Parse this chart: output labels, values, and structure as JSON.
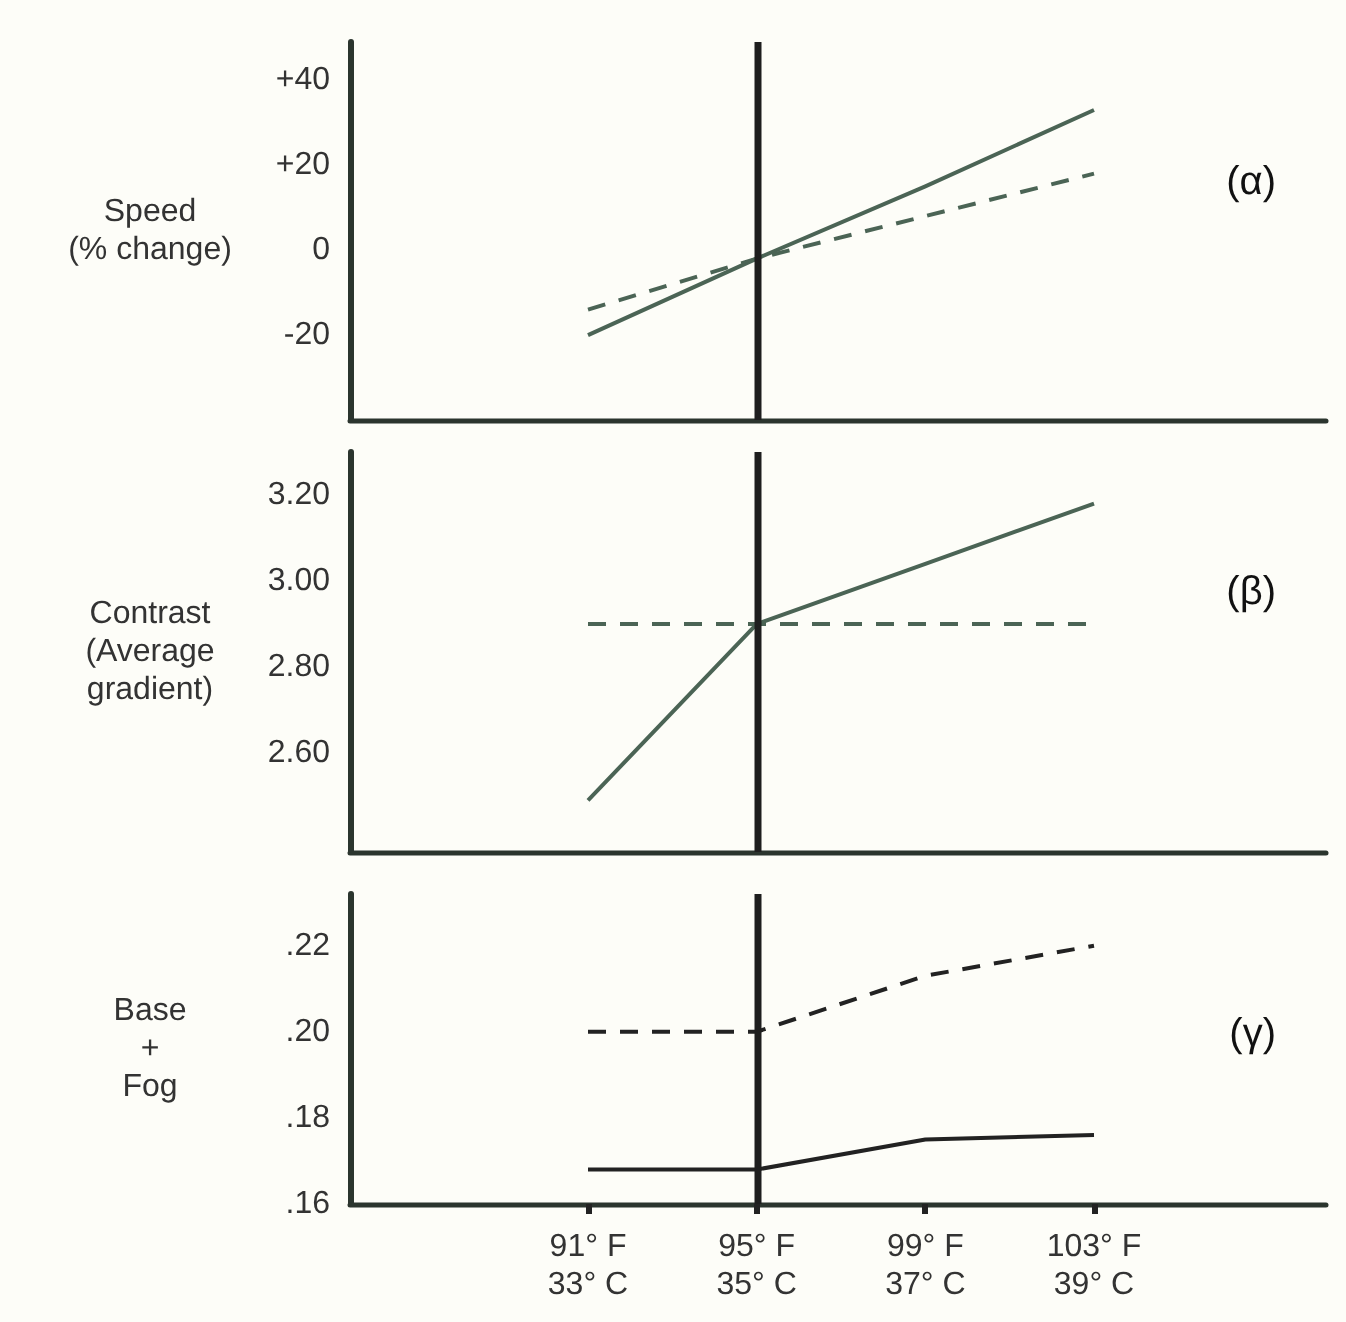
{
  "chart_data": [
    {
      "type": "line",
      "ylabel": "Speed\n(% change)",
      "categories": [
        null,
        null,
        null,
        null
      ],
      "ylim": [
        -40,
        49
      ],
      "yticks": [
        {
          "value": 40,
          "label": "+40"
        },
        {
          "value": 20,
          "label": "+20"
        },
        0,
        -20
      ],
      "tick_labels": "y",
      "marker": "none",
      "series": [
        {
          "color": "#4b6455",
          "line_style": "solid",
          "values": [
            -20,
            -2,
            15,
            33
          ]
        },
        {
          "color": "#4b6455",
          "line_style": "dashed",
          "values": [
            -14,
            -2,
            8,
            18
          ]
        }
      ],
      "annotations": [
        "(α)"
      ]
    },
    {
      "type": "line",
      "ylabel": "Contrast\n(Average\ngradient)",
      "categories": [
        null,
        null,
        null,
        null
      ],
      "ylim": [
        2.37,
        3.3
      ],
      "yticks": [
        {
          "value": 3.2,
          "label": "3.20"
        },
        {
          "value": 3,
          "label": "3.00"
        },
        {
          "value": 2.8,
          "label": "2.80"
        },
        {
          "value": 2.6,
          "label": "2.60"
        }
      ],
      "tick_labels": "y",
      "marker": "none",
      "series": [
        {
          "color": "#4b6455",
          "line_style": "solid",
          "values": [
            2.49,
            2.9,
            3.04,
            3.18
          ]
        },
        {
          "color": "#4b6455",
          "line_style": "dashed",
          "values": [
            2.9,
            2.9,
            2.9,
            2.9
          ]
        }
      ],
      "annotations": [
        "(β)"
      ]
    },
    {
      "type": "line",
      "ylabel": "Base\n+\nFog",
      "categories": [
        "91° F\n33° C",
        "95° F\n35° C",
        "99° F\n37° C",
        "103° F\n39° C"
      ],
      "ylim": [
        0.16,
        0.232
      ],
      "yticks": [
        {
          "value": 0.22,
          "label": ".22"
        },
        {
          "value": 0.2,
          "label": ".20"
        },
        {
          "value": 0.18,
          "label": ".18"
        },
        {
          "value": 0.16,
          "label": ".16"
        }
      ],
      "marker": "none",
      "series": [
        {
          "color": "#222222",
          "line_style": "dashed",
          "values": [
            0.2,
            0.2,
            0.213,
            0.22
          ]
        },
        {
          "color": "#222222",
          "line_style": "solid",
          "values": [
            0.168,
            0.168,
            0.175,
            0.176
          ]
        }
      ],
      "ref_lines": [
        {
          "axis": "x",
          "value": "95° F\n35° C",
          "color": "#1e1e1e"
        }
      ],
      "annotations": [
        "(γ)"
      ]
    }
  ]
}
